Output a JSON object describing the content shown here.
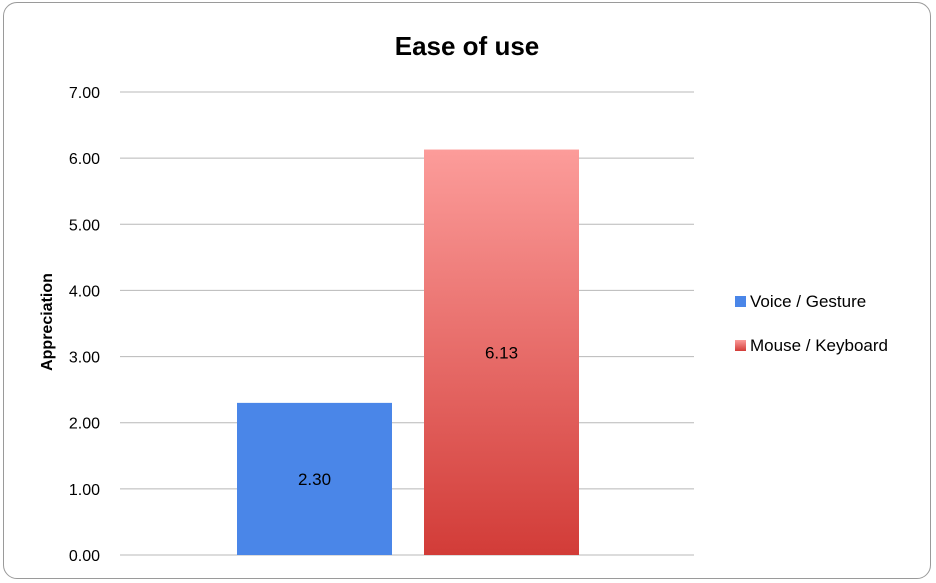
{
  "chart_data": {
    "type": "bar",
    "title": "Ease of use",
    "xlabel": "",
    "ylabel": "Appreciation",
    "ylim": [
      0,
      7
    ],
    "yticks": [
      "0.00",
      "1.00",
      "2.00",
      "3.00",
      "4.00",
      "5.00",
      "6.00",
      "7.00"
    ],
    "grid": true,
    "legend_position": "right",
    "series": [
      {
        "name": "Voice / Gesture",
        "value": 2.3,
        "label": "2.30",
        "color": "#4a86e8"
      },
      {
        "name": "Mouse / Keyboard",
        "value": 6.13,
        "label": "6.13",
        "color": "#e0504c"
      }
    ]
  }
}
